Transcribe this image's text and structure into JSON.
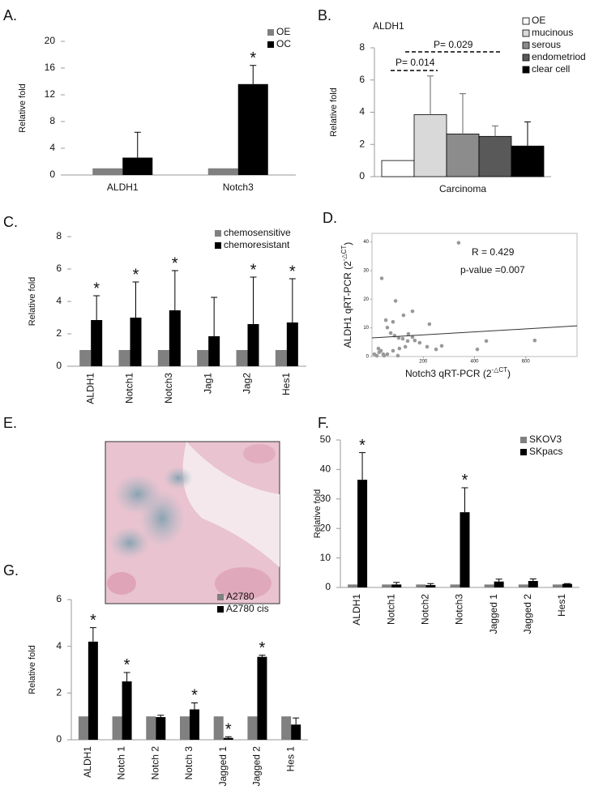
{
  "chart_data": [
    {
      "type": "bar",
      "label": "A.",
      "ylabel": "Relative fold",
      "categories": [
        "ALDH1",
        "Notch3"
      ],
      "series": [
        {
          "name": "OE",
          "color": "#808080",
          "values": [
            1,
            1
          ]
        },
        {
          "name": "OC",
          "color": "#000000",
          "values": [
            2.6,
            13.6
          ],
          "errors": [
            3.8,
            2.8
          ],
          "significance": [
            null,
            "*"
          ]
        }
      ],
      "ylim": [
        0,
        20
      ],
      "yticks": [
        0,
        4,
        8,
        12,
        16,
        20
      ]
    },
    {
      "type": "bar",
      "label": "B.",
      "title": "ALDH1",
      "ylabel": "Relative fold",
      "categories": [
        "Carcinoma"
      ],
      "series": [
        {
          "name": "OE",
          "color": "#ffffff",
          "values": [
            1
          ]
        },
        {
          "name": "mucinous",
          "color": "#d9d9d9",
          "values": [
            3.85
          ],
          "errors": [
            2.4
          ]
        },
        {
          "name": "serous",
          "color": "#8c8c8c",
          "values": [
            2.65
          ],
          "errors": [
            2.5
          ]
        },
        {
          "name": "endometriod",
          "color": "#595959",
          "values": [
            2.5
          ],
          "errors": [
            0.65
          ]
        },
        {
          "name": "clear cell",
          "color": "#000000",
          "values": [
            1.9
          ],
          "errors": [
            1.5
          ]
        }
      ],
      "ylim": [
        0,
        8
      ],
      "yticks": [
        0,
        2,
        4,
        6,
        8
      ],
      "annotations": [
        "P= 0.014",
        "P= 0.029"
      ]
    },
    {
      "type": "bar",
      "label": "C.",
      "ylabel": "Relative fold",
      "categories": [
        "ALDH1",
        "Notch1",
        "Notch3",
        "Jag1",
        "Jag2",
        "Hes1"
      ],
      "series": [
        {
          "name": "chemosensitive",
          "color": "#808080",
          "values": [
            1,
            1,
            1,
            1,
            1,
            1
          ]
        },
        {
          "name": "chemoresistant",
          "color": "#000000",
          "values": [
            2.85,
            3.0,
            3.45,
            1.85,
            2.6,
            2.7
          ],
          "errors": [
            1.5,
            2.2,
            2.45,
            2.4,
            2.9,
            2.7
          ],
          "significance": [
            "*",
            "*",
            "*",
            null,
            "*",
            "*"
          ]
        }
      ],
      "ylim": [
        0,
        8
      ],
      "yticks": [
        0,
        2,
        4,
        6,
        8
      ]
    },
    {
      "type": "scatter",
      "label": "D.",
      "xlabel": [
        "Notch3   qRT-PCR (2",
        "-△CT",
        ")"
      ],
      "ylabel": [
        "ALDH1 qRT-PCR (2",
        "-△CT",
        ")"
      ],
      "x": [
        338,
        38,
        92,
        123,
        54,
        82,
        60,
        73,
        88,
        104,
        120,
        139,
        167,
        186,
        215,
        250,
        272,
        130,
        107,
        82,
        35,
        25,
        44,
        60,
        9,
        47,
        101,
        158,
        142,
        224,
        411,
        446,
        635,
        158,
        28,
        19
      ],
      "values": [
        39.7,
        27.3,
        19.4,
        14.4,
        12.7,
        12.1,
        10.1,
        8.2,
        7.3,
        6.5,
        6.2,
        5.4,
        5.6,
        4.8,
        3.4,
        2.5,
        3.7,
        3.4,
        2.8,
        2.0,
        2.0,
        2.8,
        0.8,
        0.8,
        0.8,
        0.3,
        0.3,
        6.8,
        7.9,
        11.3,
        2.5,
        5.4,
        5.6,
        15.8,
        1.5,
        0.3
      ],
      "color": "#999999",
      "xlim": [
        0,
        800
      ],
      "ylim": [
        0,
        43
      ],
      "xticks": [
        200,
        400,
        600
      ],
      "yticks": [
        0,
        10,
        20,
        30,
        40
      ],
      "trendline": {
        "intercept": 6.5,
        "slope": 0.00525
      },
      "annotations": [
        "R = 0.429",
        "p-value =0.007"
      ]
    },
    {
      "type": "image",
      "label": "E."
    },
    {
      "type": "bar",
      "label": "F.",
      "ylabel": "Relative fold",
      "categories": [
        "ALDH1",
        "Notch1",
        "Notch2",
        "Notch3",
        "Jagged 1",
        "Jagged 2",
        "Hes1"
      ],
      "series": [
        {
          "name": "SKOV3",
          "color": "#808080",
          "values": [
            1,
            1,
            1,
            1,
            1,
            1,
            1
          ]
        },
        {
          "name": "SKpacs",
          "color": "#000000",
          "values": [
            36.5,
            1,
            0.8,
            25.5,
            2,
            2.2,
            1.2
          ],
          "errors": [
            9.2,
            0.7,
            0.5,
            8.3,
            0.8,
            0.7,
            0.1
          ],
          "significance": [
            "*",
            null,
            null,
            "*",
            null,
            null,
            null
          ]
        }
      ],
      "ylim": [
        0,
        50
      ],
      "yticks": [
        0,
        10,
        20,
        30,
        40,
        50
      ]
    },
    {
      "type": "bar",
      "label": "G.",
      "ylabel": "Relative fold",
      "categories": [
        "ALDH1",
        "Notch 1",
        "Notch 2",
        "Notch 3",
        "Jagged 1",
        "Jagged 2",
        "Hes 1"
      ],
      "series": [
        {
          "name": "A2780",
          "color": "#808080",
          "values": [
            1,
            1,
            1,
            1,
            1,
            1,
            1
          ]
        },
        {
          "name": "A2780 cis",
          "color": "#000000",
          "values": [
            4.2,
            2.5,
            0.97,
            1.3,
            0.08,
            3.55,
            0.65
          ],
          "errors": [
            0.6,
            0.38,
            0.08,
            0.28,
            0.05,
            0.07,
            0.28
          ],
          "significance": [
            "*",
            "*",
            null,
            "*",
            "*",
            "*",
            null
          ]
        }
      ],
      "ylim": [
        0,
        6
      ],
      "yticks": [
        0,
        2,
        4,
        6
      ]
    }
  ]
}
